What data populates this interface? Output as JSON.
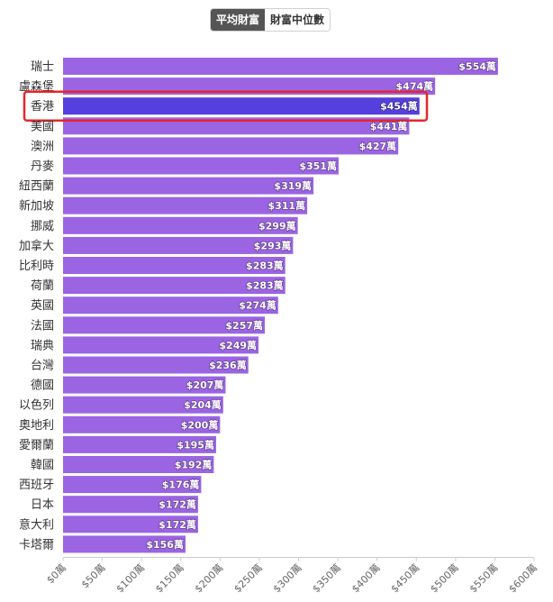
{
  "toggle": {
    "average_label": "平均財富",
    "median_label": "財富中位數"
  },
  "colors": {
    "bar": "#9B64E3",
    "highlight_bar": "#5540DD",
    "highlight_border": "#E8262B"
  },
  "chart_data": {
    "type": "bar",
    "orientation": "horizontal",
    "categories": [
      "瑞士",
      "盧森堡",
      "香港",
      "美國",
      "澳洲",
      "丹麥",
      "紐西蘭",
      "新加坡",
      "挪威",
      "加拿大",
      "比利時",
      "荷蘭",
      "英國",
      "法國",
      "瑞典",
      "台灣",
      "德國",
      "以色列",
      "奧地利",
      "愛爾蘭",
      "韓國",
      "西班牙",
      "日本",
      "意大利",
      "卡塔爾"
    ],
    "values": [
      554,
      474,
      454,
      441,
      427,
      351,
      319,
      311,
      299,
      293,
      283,
      283,
      274,
      257,
      249,
      236,
      207,
      204,
      200,
      195,
      192,
      176,
      172,
      172,
      156
    ],
    "value_labels": [
      "$554萬",
      "$474萬",
      "$454萬",
      "$441萬",
      "$427萬",
      "$351萬",
      "$319萬",
      "$311萬",
      "$299萬",
      "$293萬",
      "$283萬",
      "$283萬",
      "$274萬",
      "$257萬",
      "$249萬",
      "$236萬",
      "$207萬",
      "$204萬",
      "$200萬",
      "$195萬",
      "$192萬",
      "$176萬",
      "$172萬",
      "$172萬",
      "$156萬"
    ],
    "highlighted_category": "香港",
    "xlim": [
      0,
      600
    ],
    "x_ticks": [
      "$0萬",
      "$50萬",
      "$100萬",
      "$150萬",
      "$200萬",
      "$250萬",
      "$300萬",
      "$350萬",
      "$400萬",
      "$450萬",
      "$500萬",
      "$550萬",
      "$600萬"
    ],
    "grid": false,
    "legend": "none"
  }
}
